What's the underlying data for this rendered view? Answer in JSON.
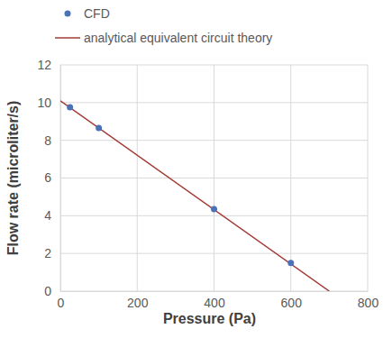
{
  "chart_data": {
    "type": "scatter",
    "xlabel": "Pressure (Pa)",
    "ylabel": "Flow rate (microliter/s)",
    "xlim": [
      0,
      800
    ],
    "xticks": [
      0,
      200,
      400,
      600,
      800
    ],
    "ylim": [
      0,
      12
    ],
    "yticks": [
      0,
      2,
      4,
      6,
      8,
      10,
      12
    ],
    "grid": true,
    "legend": "top",
    "series": [
      {
        "name": "CFD",
        "type": "scatter",
        "marker": "circle",
        "color": "#4a72b8",
        "x": [
          25,
          100,
          400,
          600
        ],
        "values": [
          9.75,
          8.65,
          4.35,
          1.5
        ]
      },
      {
        "name": "analytical equivalent circuit theory",
        "type": "line",
        "line_style": "solid",
        "color": "#a33b36",
        "x": [
          0,
          700
        ],
        "values": [
          10.1,
          0
        ]
      }
    ]
  }
}
